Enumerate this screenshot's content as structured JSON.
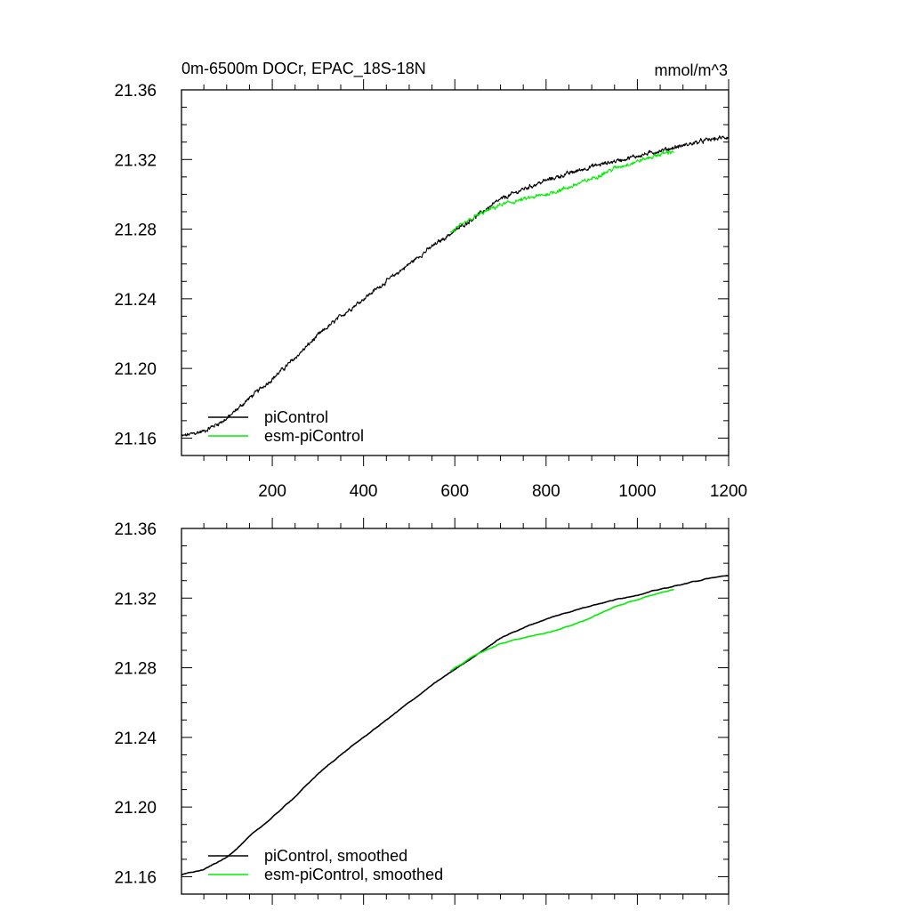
{
  "title_left": "0m-6500m DOCr, EPAC_18S-18N",
  "title_right": "mmol/m^3",
  "colors": {
    "piControl": "#000000",
    "esm_piControl": "#00ee00",
    "axis": "#000000"
  },
  "chart_data": [
    {
      "type": "line",
      "panel": "top",
      "xlim": [
        1,
        1200
      ],
      "ylim": [
        21.15,
        21.36
      ],
      "x_ticks": [
        200,
        400,
        600,
        800,
        1000,
        1200
      ],
      "x_tick_labels": [
        "200",
        "400",
        "600",
        "800",
        "1000",
        "1200"
      ],
      "y_ticks": [
        21.16,
        21.2,
        21.24,
        21.28,
        21.32,
        21.36
      ],
      "y_tick_labels": [
        "21.16",
        "21.20",
        "21.24",
        "21.28",
        "21.32",
        "21.36"
      ],
      "series": [
        {
          "name": "piControl",
          "color": "#000000",
          "noisy": true,
          "x": [
            1,
            50,
            100,
            150,
            200,
            250,
            300,
            350,
            400,
            450,
            500,
            550,
            600,
            650,
            700,
            750,
            800,
            850,
            900,
            950,
            1000,
            1050,
            1100,
            1150,
            1200
          ],
          "y": [
            21.161,
            21.164,
            21.171,
            21.183,
            21.194,
            21.206,
            21.219,
            21.23,
            21.24,
            21.25,
            21.26,
            21.27,
            21.279,
            21.288,
            21.297,
            21.303,
            21.308,
            21.312,
            21.316,
            21.319,
            21.322,
            21.325,
            21.328,
            21.331,
            21.333
          ]
        },
        {
          "name": "esm-piControl",
          "color": "#00ee00",
          "noisy": true,
          "x": [
            590,
            650,
            700,
            750,
            800,
            850,
            900,
            950,
            1000,
            1050,
            1080
          ],
          "y": [
            21.278,
            21.288,
            21.294,
            21.297,
            21.3,
            21.304,
            21.309,
            21.315,
            21.319,
            21.323,
            21.325
          ]
        }
      ],
      "legend": [
        "piControl",
        "esm-piControl"
      ],
      "legend_position": "bottom-left"
    },
    {
      "type": "line",
      "panel": "bottom",
      "xlim": [
        1,
        1200
      ],
      "ylim": [
        21.15,
        21.36
      ],
      "x_ticks": [
        200,
        400,
        600,
        800,
        1000,
        1200
      ],
      "y_ticks": [
        21.16,
        21.2,
        21.24,
        21.28,
        21.32,
        21.36
      ],
      "y_tick_labels": [
        "21.16",
        "21.20",
        "21.24",
        "21.28",
        "21.32",
        "21.36"
      ],
      "series": [
        {
          "name": "piControl, smoothed",
          "color": "#000000",
          "noisy": false,
          "x": [
            1,
            50,
            100,
            150,
            200,
            250,
            300,
            350,
            400,
            450,
            500,
            550,
            600,
            650,
            700,
            750,
            800,
            850,
            900,
            950,
            1000,
            1050,
            1100,
            1150,
            1200
          ],
          "y": [
            21.161,
            21.164,
            21.171,
            21.183,
            21.194,
            21.206,
            21.219,
            21.23,
            21.24,
            21.25,
            21.26,
            21.27,
            21.279,
            21.288,
            21.297,
            21.303,
            21.308,
            21.312,
            21.316,
            21.319,
            21.322,
            21.325,
            21.328,
            21.331,
            21.333
          ]
        },
        {
          "name": "esm-piControl, smoothed",
          "color": "#00ee00",
          "noisy": false,
          "x": [
            590,
            650,
            700,
            750,
            800,
            850,
            900,
            950,
            1000,
            1050,
            1080
          ],
          "y": [
            21.278,
            21.288,
            21.294,
            21.297,
            21.3,
            21.304,
            21.309,
            21.315,
            21.319,
            21.323,
            21.325
          ]
        }
      ],
      "legend": [
        "piControl, smoothed",
        "esm-piControl, smoothed"
      ],
      "legend_position": "bottom-left"
    }
  ]
}
